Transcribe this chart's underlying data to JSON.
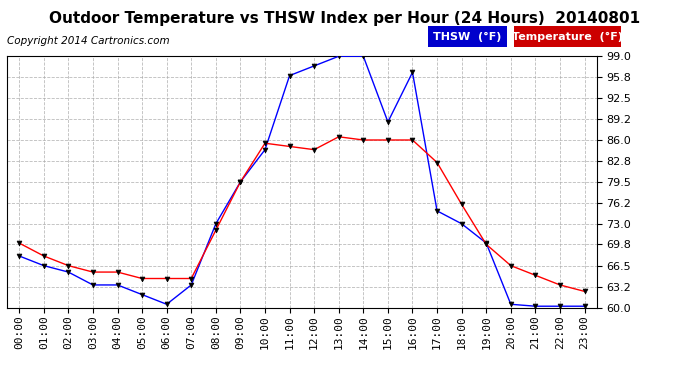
{
  "title": "Outdoor Temperature vs THSW Index per Hour (24 Hours)  20140801",
  "copyright": "Copyright 2014 Cartronics.com",
  "hours": [
    "00:00",
    "01:00",
    "02:00",
    "03:00",
    "04:00",
    "05:00",
    "06:00",
    "07:00",
    "08:00",
    "09:00",
    "10:00",
    "11:00",
    "12:00",
    "13:00",
    "14:00",
    "15:00",
    "16:00",
    "17:00",
    "18:00",
    "19:00",
    "20:00",
    "21:00",
    "22:00",
    "23:00"
  ],
  "thsw": [
    68.0,
    66.5,
    65.5,
    63.5,
    63.5,
    62.0,
    60.5,
    63.5,
    73.0,
    79.5,
    84.5,
    96.0,
    97.5,
    99.0,
    99.0,
    88.8,
    96.5,
    75.0,
    73.0,
    70.0,
    60.5,
    60.2,
    60.2,
    60.2
  ],
  "temperature": [
    70.0,
    68.0,
    66.5,
    65.5,
    65.5,
    64.5,
    64.5,
    64.5,
    72.0,
    79.5,
    85.5,
    85.0,
    84.5,
    86.5,
    86.0,
    86.0,
    86.0,
    82.5,
    76.0,
    69.8,
    66.5,
    65.0,
    63.5,
    62.5
  ],
  "ylim_min": 60.0,
  "ylim_max": 99.0,
  "yticks": [
    60.0,
    63.2,
    66.5,
    69.8,
    73.0,
    76.2,
    79.5,
    82.8,
    86.0,
    89.2,
    92.5,
    95.8,
    99.0
  ],
  "thsw_color": "#0000ff",
  "temp_color": "#ff0000",
  "bg_color": "#ffffff",
  "plot_bg_color": "#ffffff",
  "grid_color": "#aaaaaa",
  "title_fontsize": 11,
  "tick_fontsize": 8,
  "copyright_fontsize": 7.5,
  "legend_thsw_bg": "#0000cc",
  "legend_temp_bg": "#cc0000",
  "legend_text_color": "#ffffff"
}
